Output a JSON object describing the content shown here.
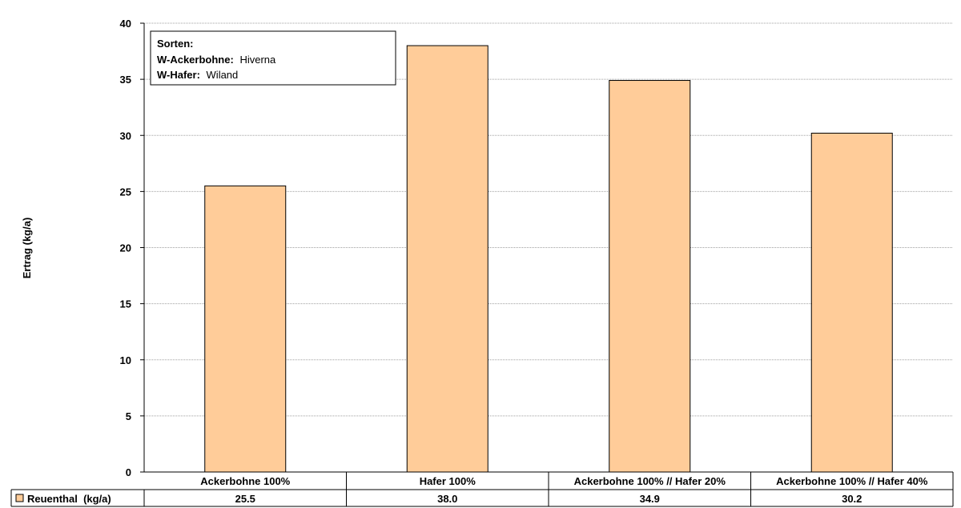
{
  "chart_data": {
    "type": "bar",
    "categories": [
      "Ackerbohne 100%",
      "Hafer 100%",
      "Ackerbohne 100% // Hafer 20%",
      "Ackerbohne 100% // Hafer 40%"
    ],
    "series": [
      {
        "name": "Reuenthal  (kg/a)",
        "values": [
          25.5,
          38.0,
          34.9,
          30.2
        ],
        "value_labels": [
          "25.5",
          "38.0",
          "34.9",
          "30.2"
        ],
        "color": "#FFCC99",
        "border_color": "#000000"
      }
    ],
    "ylabel": "Ertrag (kg/a)",
    "ylim": [
      0,
      40
    ],
    "yticks": [
      0,
      5,
      10,
      15,
      20,
      25,
      30,
      35,
      40
    ],
    "grid": true,
    "grid_color": "#A0A0A0",
    "legend_placement": "bottom-left data table",
    "data_table": true,
    "annotation": {
      "title": "Sorten:",
      "lines": [
        {
          "label": "W-Ackerbohne:",
          "value": "Hiverna"
        },
        {
          "label": "W-Hafer:",
          "value": "Wiland"
        }
      ]
    }
  }
}
